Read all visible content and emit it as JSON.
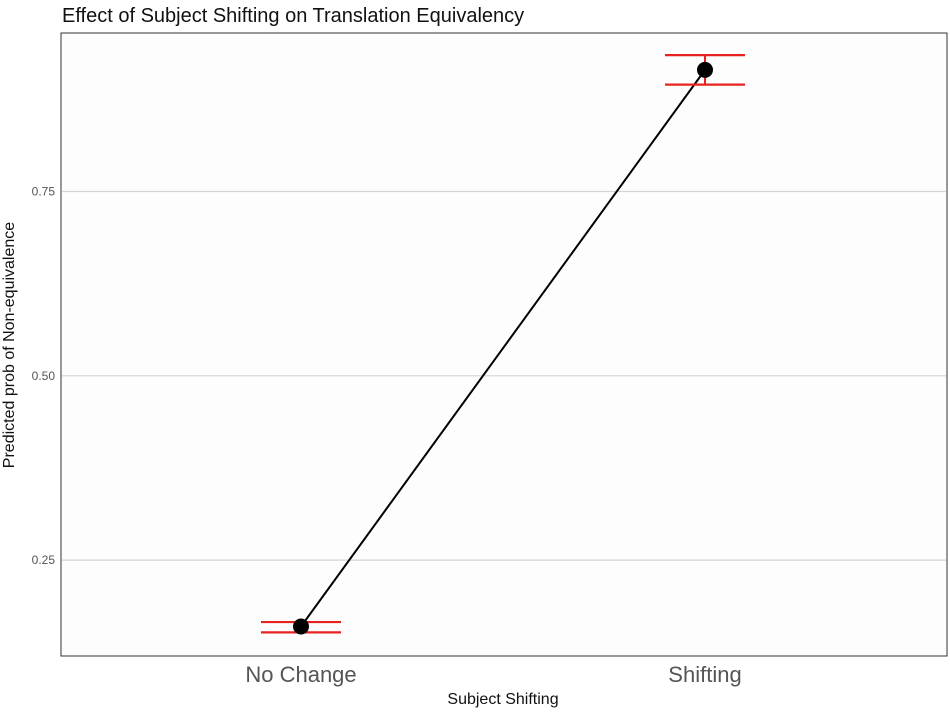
{
  "chart_data": {
    "type": "line",
    "title": "Effect of Subject Shifting on Translation Equivalency",
    "xlabel": "Subject Shifting",
    "ylabel": "Predicted prob of Non-equivalence",
    "categories": [
      "No Change",
      "Shifting"
    ],
    "series": [
      {
        "values": [
          0.16,
          0.915
        ],
        "ci_lower": [
          0.152,
          0.895
        ],
        "ci_upper": [
          0.166,
          0.935
        ]
      }
    ],
    "y_ticks": [
      0.25,
      0.5,
      0.75
    ],
    "y_tick_labels": [
      "0.25",
      "0.50",
      "0.75"
    ],
    "ylim": [
      0.12,
      0.965
    ],
    "grid": "horizontal major",
    "legend": "none",
    "colors": {
      "line": "#000000",
      "point": "#000000",
      "error_bar": "#e8231f",
      "grid": "#d4d4d4",
      "panel_border": "#333333",
      "panel_fill": "#fdfdfd"
    }
  }
}
